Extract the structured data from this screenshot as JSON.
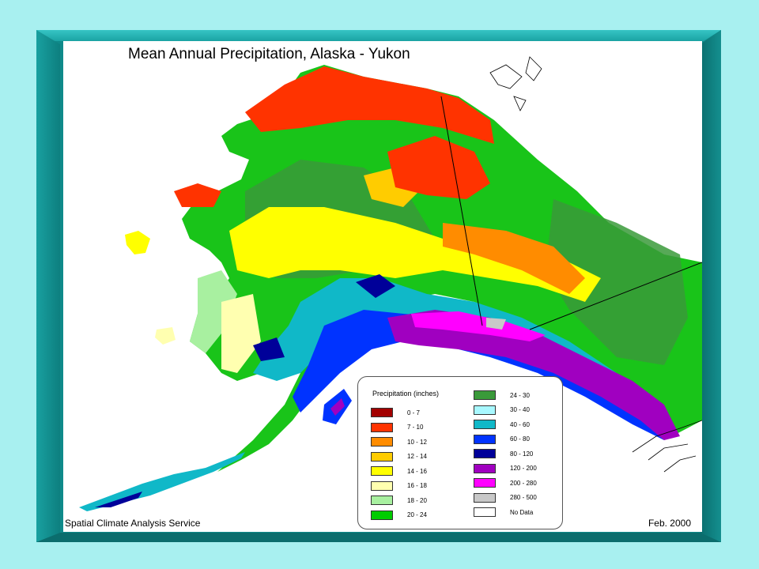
{
  "map": {
    "title": "Mean Annual Precipitation, Alaska - Yukon",
    "credit": "Spatial Climate Analysis Service",
    "date": "Feb. 2000"
  },
  "legend": {
    "title": "Precipitation (inches)",
    "items_col1": [
      {
        "label": "0 - 7",
        "color": "#a30000"
      },
      {
        "label": "7 - 10",
        "color": "#ff3300"
      },
      {
        "label": "10 - 12",
        "color": "#ff8c00"
      },
      {
        "label": "12 - 14",
        "color": "#ffcc00"
      },
      {
        "label": "14 - 16",
        "color": "#ffff00"
      },
      {
        "label": "16 - 18",
        "color": "#ffffb0"
      },
      {
        "label": "18 - 20",
        "color": "#a8f0a0"
      },
      {
        "label": "20 - 24",
        "color": "#00cc00"
      }
    ],
    "items_col2": [
      {
        "label": "24 - 30",
        "color": "#3a9a3a"
      },
      {
        "label": "30 - 40",
        "color": "#a8f8ff"
      },
      {
        "label": "40 - 60",
        "color": "#10b8c8"
      },
      {
        "label": "60 - 80",
        "color": "#0033ff"
      },
      {
        "label": "80 - 120",
        "color": "#000099"
      },
      {
        "label": "120 - 200",
        "color": "#a000c0"
      },
      {
        "label": "200 - 280",
        "color": "#ff00ff"
      },
      {
        "label": "280 - 500",
        "color": "#c8c8c8"
      },
      {
        "label": "No Data",
        "color": "#ffffff"
      }
    ]
  }
}
